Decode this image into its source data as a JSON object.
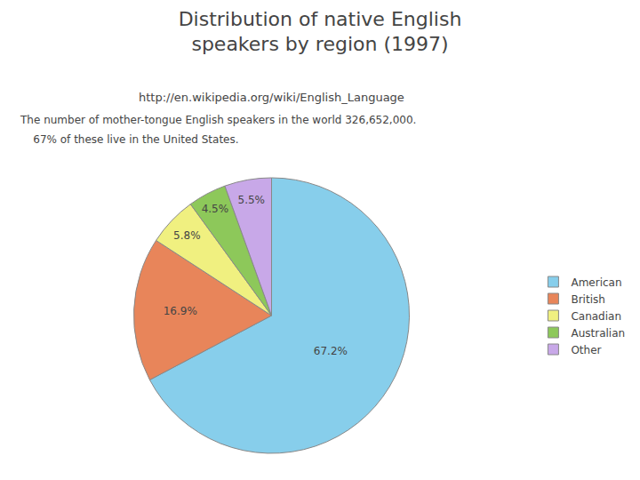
{
  "chart_data": {
    "type": "pie",
    "title": [
      "Distribution of native English",
      "speakers by region (1997)"
    ],
    "subtitle": "http://en.wikipedia.org/wiki/English_Language",
    "annotations": [
      "The number of mother-tongue English speakers in the world 326,652,000.",
      "    67% of these live in the United States."
    ],
    "categories": [
      "American",
      "British",
      "Canadian",
      "Australian",
      "Other"
    ],
    "values": [
      67.2,
      16.9,
      5.8,
      4.5,
      5.5
    ],
    "value_labels": [
      "67.2%",
      "16.9%",
      "5.8%",
      "4.5%",
      "5.5%"
    ],
    "data_labels": true,
    "colors": [
      "#87CEEB",
      "#E8855A",
      "#F0F080",
      "#8DC85A",
      "#C8A8E8"
    ],
    "legend": "right"
  }
}
